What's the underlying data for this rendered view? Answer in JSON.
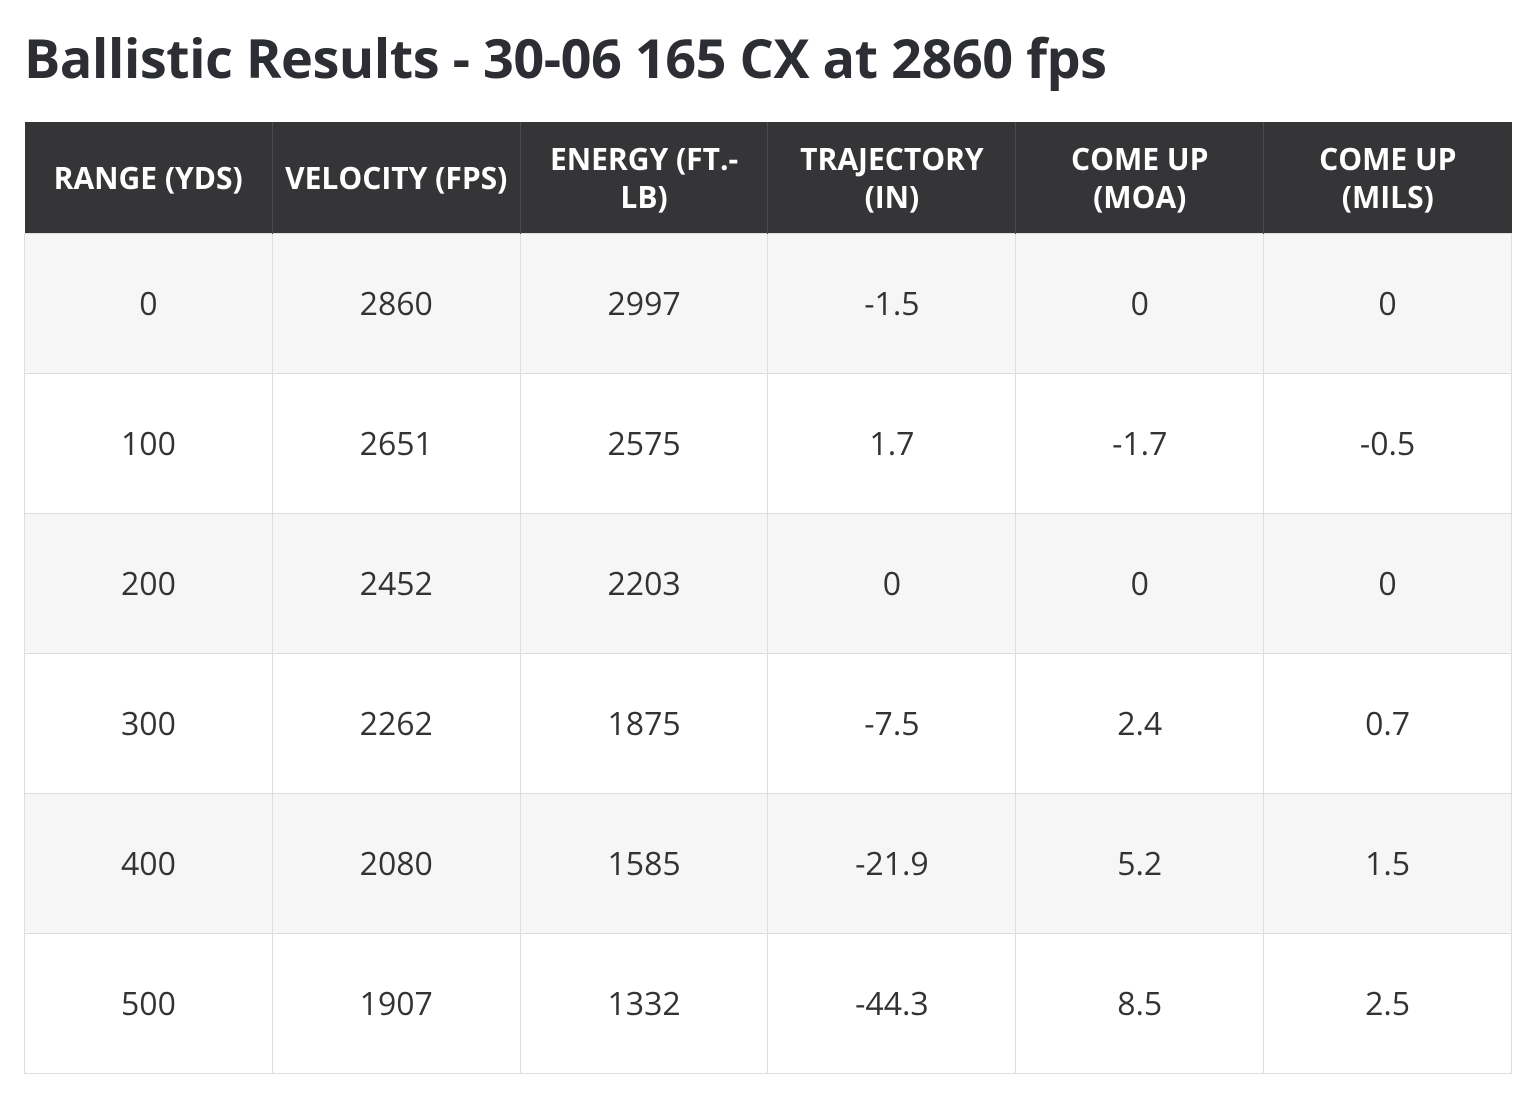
{
  "title": "Ballistic Results - 30-06 165 CX at 2860 fps",
  "table": {
    "columns": [
      "RANGE (YDS)",
      "VELOCITY (FPS)",
      "ENERGY (FT.-LB)",
      "TRAJECTORY (IN)",
      "COME UP (MOA)",
      "COME UP (MILS)"
    ],
    "rows": [
      [
        "0",
        "2860",
        "2997",
        "-1.5",
        "0",
        "0"
      ],
      [
        "100",
        "2651",
        "2575",
        "1.7",
        "-1.7",
        "-0.5"
      ],
      [
        "200",
        "2452",
        "2203",
        "0",
        "0",
        "0"
      ],
      [
        "300",
        "2262",
        "1875",
        "-7.5",
        "2.4",
        "0.7"
      ],
      [
        "400",
        "2080",
        "1585",
        "-21.9",
        "5.2",
        "1.5"
      ],
      [
        "500",
        "1907",
        "1332",
        "-44.3",
        "8.5",
        "2.5"
      ]
    ],
    "styling": {
      "header_background": "#353538",
      "header_text_color": "#ffffff",
      "header_font_size_pt": 22,
      "header_font_weight": 700,
      "row_odd_background": "#f6f6f6",
      "row_even_background": "#ffffff",
      "cell_border_color": "#dddddd",
      "cell_text_color": "#333333",
      "cell_font_size_pt": 24,
      "title_color": "#2c2e34",
      "title_font_size_pt": 40,
      "title_font_weight": 700,
      "column_count": 6,
      "text_align": "center"
    }
  }
}
